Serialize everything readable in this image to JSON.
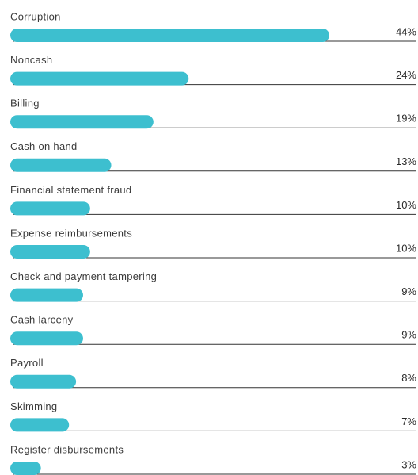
{
  "chart_data": {
    "type": "bar",
    "orientation": "horizontal",
    "categories": [
      "Corruption",
      "Noncash",
      "Billing",
      "Cash on hand",
      "Financial statement fraud",
      "Expense reimbursements",
      "Check and payment tampering",
      "Cash larceny",
      "Payroll",
      "Skimming",
      "Register disbursements"
    ],
    "values": [
      44,
      24,
      19,
      13,
      10,
      10,
      9,
      9,
      8,
      7,
      3
    ],
    "value_labels": [
      "44%",
      "24%",
      "19%",
      "13%",
      "10%",
      "10%",
      "9%",
      "9%",
      "8%",
      "7%",
      "3%"
    ],
    "color": "#3dbfcf"
  }
}
